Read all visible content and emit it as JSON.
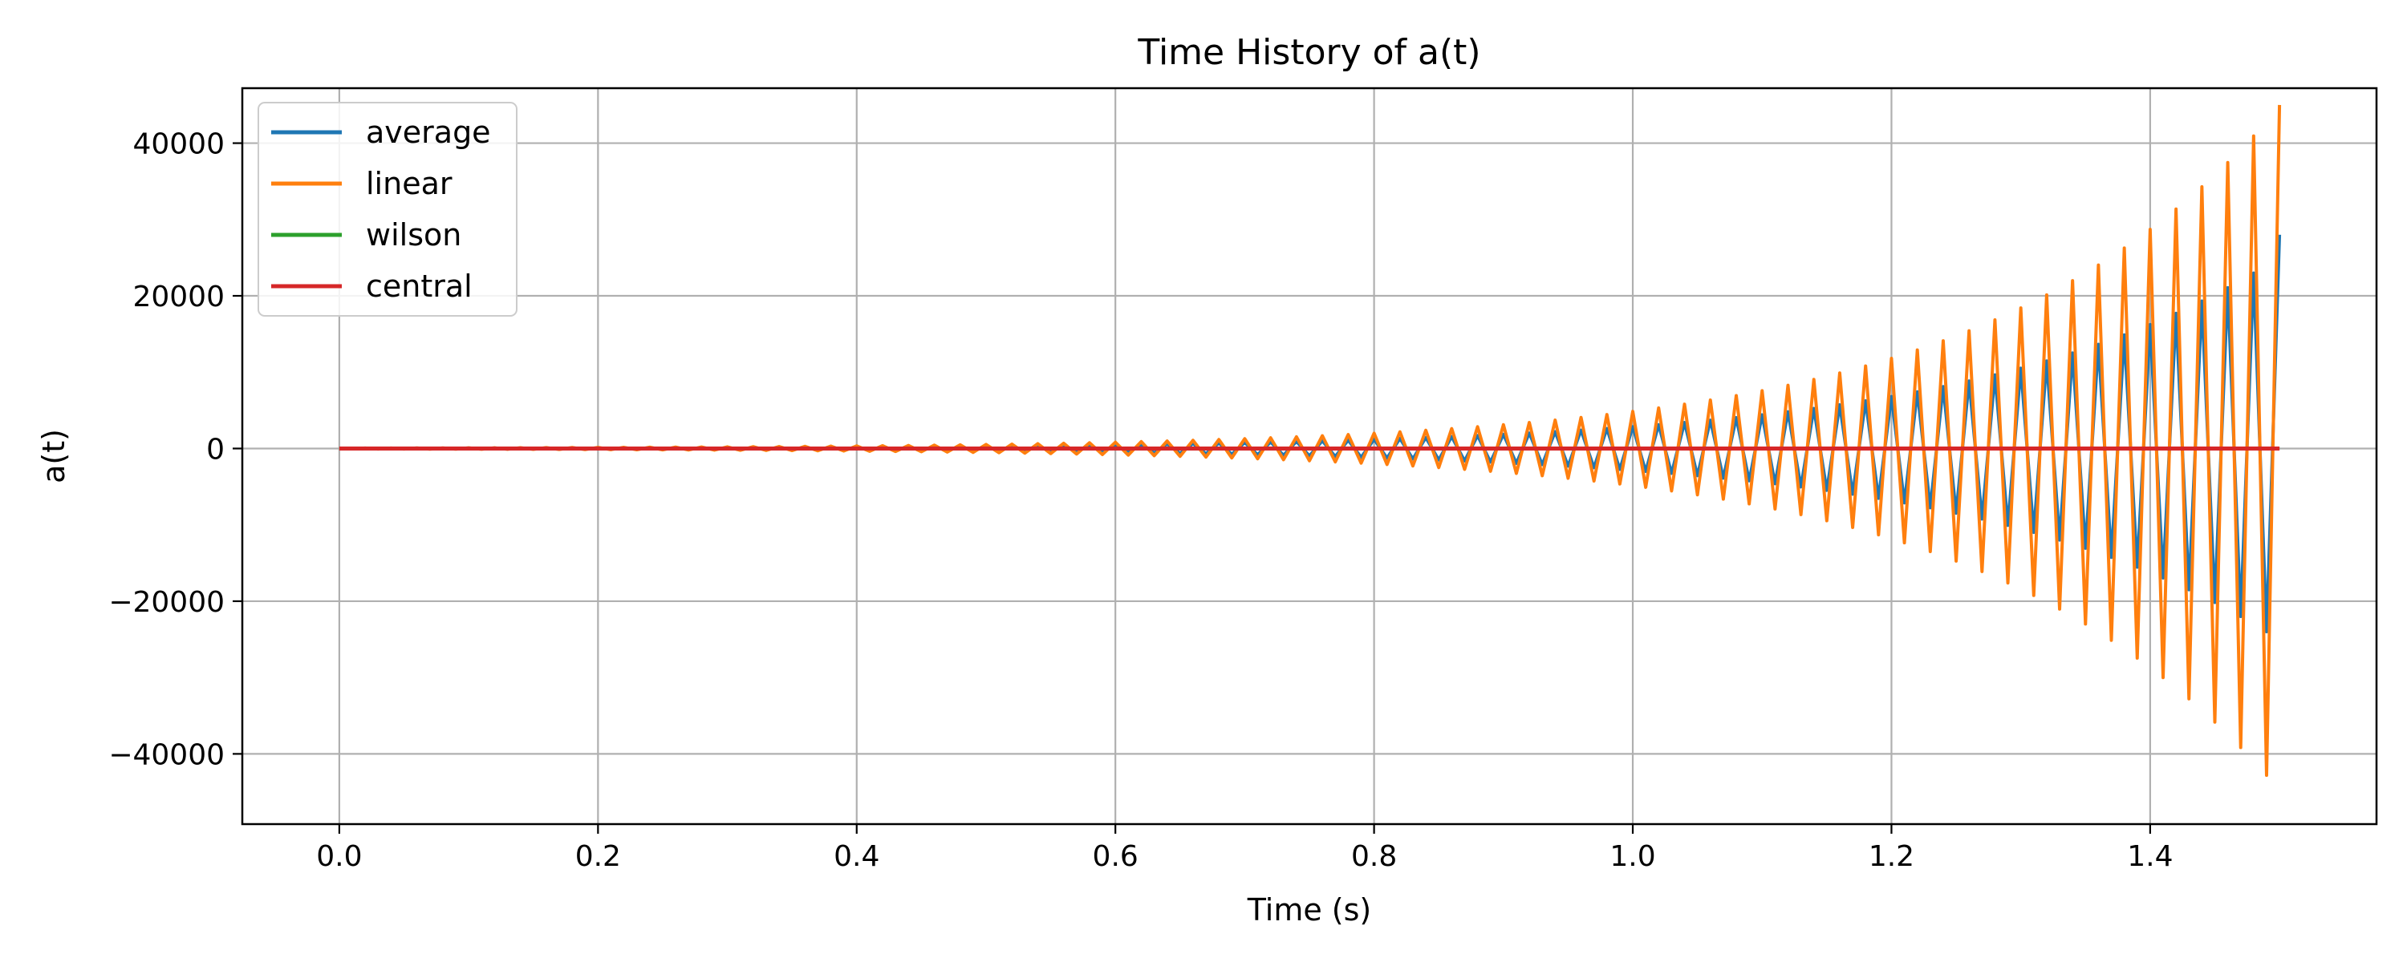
{
  "chart_data": {
    "type": "line",
    "title": "Time History of a(t)",
    "xlabel": "Time (s)",
    "ylabel": "a(t)",
    "xlim": [
      -0.075,
      1.575
    ],
    "ylim": [
      -49200,
      47200
    ],
    "xticks": [
      0.0,
      0.2,
      0.4,
      0.6,
      0.8,
      1.0,
      1.2,
      1.4
    ],
    "xtick_labels": [
      "0.0",
      "0.2",
      "0.4",
      "0.6",
      "0.8",
      "1.0",
      "1.2",
      "1.4"
    ],
    "yticks": [
      -40000,
      -20000,
      0,
      20000,
      40000
    ],
    "ytick_labels": [
      "−40000",
      "−20000",
      "0",
      "20000",
      "40000"
    ],
    "grid": true,
    "legend_position": "top-left",
    "x_sampling": {
      "start": 0.0,
      "end": 1.5,
      "step": 0.01
    },
    "series": [
      {
        "name": "average",
        "color": "#1f77b4",
        "description_values": "alternating-sign oscillation with growing amplitude",
        "peak_values": [
          [
            1.48,
            24000
          ],
          [
            1.5,
            -28000
          ]
        ]
      },
      {
        "name": "linear",
        "color": "#ff7f0e",
        "peak_values": [
          [
            0.8,
            2000
          ],
          [
            0.9,
            3000
          ],
          [
            1.0,
            5000
          ],
          [
            1.1,
            7800
          ],
          [
            1.2,
            12500
          ],
          [
            1.3,
            19000
          ],
          [
            1.4,
            29800
          ],
          [
            1.45,
            35800
          ],
          [
            1.47,
            39000
          ],
          [
            1.49,
            42800
          ],
          [
            1.48,
            -41000
          ],
          [
            1.5,
            -45000
          ]
        ]
      },
      {
        "name": "wilson",
        "color": "#2ca02c",
        "peak_values": [
          [
            0.0,
            0
          ],
          [
            1.5,
            0
          ]
        ]
      },
      {
        "name": "central",
        "color": "#d62728",
        "peak_values": [
          [
            0.0,
            0
          ],
          [
            1.5,
            0
          ]
        ]
      }
    ]
  }
}
